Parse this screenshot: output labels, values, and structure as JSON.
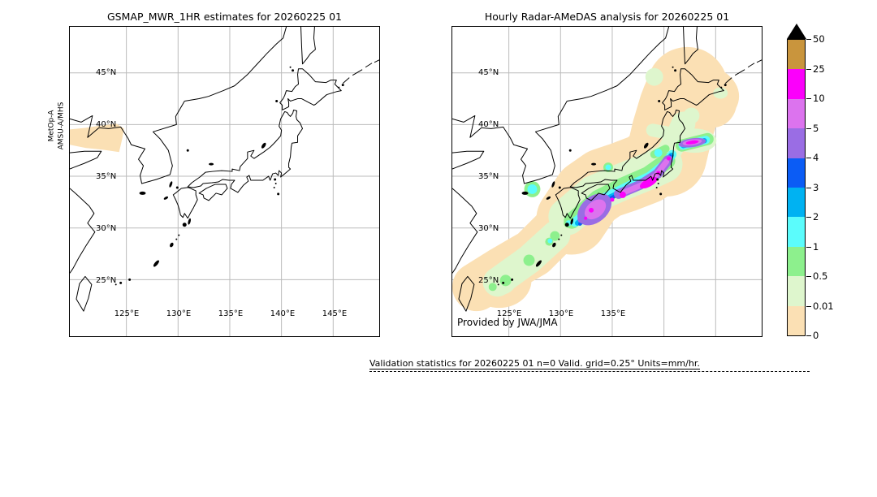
{
  "panels": {
    "left": {
      "title": "GSMAP_MWR_1HR estimates for 20260225 01",
      "satellite_line1": "MetOp-A",
      "satellite_line2": "AMSU-A/MHS",
      "lat_labels": [
        "45°N",
        "40°N",
        "35°N",
        "30°N",
        "25°N"
      ],
      "lon_labels": [
        "125°E",
        "130°E",
        "135°E",
        "140°E",
        "145°E"
      ]
    },
    "right": {
      "title": "Hourly Radar-AMeDAS analysis for 20260225 01",
      "credit": "Provided by JWA/JMA",
      "lat_labels": [
        "45°N",
        "40°N",
        "35°N",
        "30°N",
        "25°N"
      ],
      "lon_labels": [
        "125°E",
        "130°E",
        "135°E"
      ]
    }
  },
  "colorbar": {
    "units": "mm/hr",
    "labels": [
      "50",
      "25",
      "10",
      "5",
      "4",
      "3",
      "2",
      "1",
      "0.5",
      "0.01",
      "0"
    ],
    "levels_mm_hr": [
      0,
      0.01,
      0.5,
      1,
      2,
      3,
      4,
      5,
      10,
      25,
      50
    ],
    "colors_top_to_bottom": [
      "#c9953d",
      "#fb00fb",
      "#dc73ee",
      "#9a6de4",
      "#0b5cf5",
      "#00b2f2",
      "#5bfcfc",
      "#8df08d",
      "#def6cd",
      "#fbe0b4"
    ],
    "overflow_arrow_color": "#000000"
  },
  "footer": {
    "validation_text": "Validation statistics for 20260225 01  n=0 Valid. grid=0.25° Units=mm/hr."
  },
  "chart_data": [
    {
      "type": "heatmap",
      "title": "GSMAP_MWR_1HR estimates for 20260225 01",
      "x_ticks": [
        "125°E",
        "130°E",
        "135°E",
        "140°E",
        "145°E"
      ],
      "y_ticks": [
        "45°N",
        "40°N",
        "35°N",
        "30°N",
        "25°N"
      ],
      "lon_range_deg_east": [
        120,
        150
      ],
      "lat_range_deg_north": [
        19.5,
        49.5
      ],
      "grid": true,
      "annotation": "MetOp-A AMSU-A/MHS",
      "features": [
        {
          "label": "satellite microwave swath footprint, trace values",
          "value_mm_hr": "0-0.01",
          "color": "#fbe0b4",
          "approx_lon": [
            120,
            125.3
          ],
          "approx_lat": [
            37.3,
            39.8
          ]
        }
      ]
    },
    {
      "type": "heatmap",
      "title": "Hourly Radar-AMeDAS analysis for 20260225 01",
      "x_ticks": [
        "125°E",
        "130°E",
        "135°E"
      ],
      "y_ticks": [
        "45°N",
        "40°N",
        "35°N",
        "30°N",
        "25°N"
      ],
      "lon_range_deg_east": [
        120,
        150
      ],
      "lat_range_deg_north": [
        19.5,
        49.5
      ],
      "grid": true,
      "annotation": "Provided by JWA/JMA",
      "legend_position": "shared colorbar at right, levels in mm/hr",
      "features": [
        {
          "label": "trace-to-light swath (0-0.5 mm/hr) from Yaeyama/Ryukyu Islands through Kyushu, Shikoku and Honshu to all of Hokkaido",
          "value_mm_hr": "0-0.5"
        },
        {
          "label": "moderate band (1-4 mm/hr) along Pacific side from Kyushu to Kanto",
          "value_mm_hr": "1-4"
        },
        {
          "label": "heavy band with cores southeast of Kyushu, south of Shikoku, Kii Peninsula, Tokai and off Boso",
          "value_mm_hr": "5-25"
        },
        {
          "label": "intense narrow streak off Sanriku coast near 40N 142-144E",
          "value_mm_hr": "5-25"
        }
      ]
    }
  ]
}
